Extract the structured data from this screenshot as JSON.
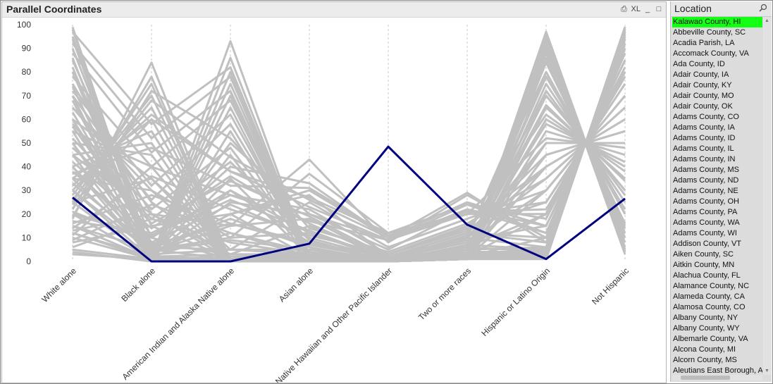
{
  "chart_panel": {
    "title": "Parallel Coordinates",
    "icons": [
      {
        "name": "print-icon",
        "glyph": "⎙"
      },
      {
        "name": "excel-icon",
        "glyph": "XL"
      },
      {
        "name": "minimize-icon",
        "glyph": "_"
      },
      {
        "name": "maximize-icon",
        "glyph": "□"
      }
    ]
  },
  "list_panel": {
    "title": "Location",
    "selected": "Kalawao County, HI",
    "items": [
      "Kalawao County, HI",
      "Abbeville County, SC",
      "Acadia Parish, LA",
      "Accomack County, VA",
      "Ada County, ID",
      "Adair County, IA",
      "Adair County, KY",
      "Adair County, MO",
      "Adair County, OK",
      "Adams County, CO",
      "Adams County, IA",
      "Adams County, ID",
      "Adams County, IL",
      "Adams County, IN",
      "Adams County, MS",
      "Adams County, ND",
      "Adams County, NE",
      "Adams County, OH",
      "Adams County, PA",
      "Adams County, WA",
      "Adams County, WI",
      "Addison County, VT",
      "Aiken County, SC",
      "Aitkin County, MN",
      "Alachua County, FL",
      "Alamance County, NC",
      "Alameda County, CA",
      "Alamosa County, CO",
      "Albany County, NY",
      "Albany County, WY",
      "Albemarle County, VA",
      "Alcona County, MI",
      "Alcorn County, MS",
      "Aleutians East Borough, AK"
    ]
  },
  "chart_data": {
    "type": "line",
    "title": "Parallel Coordinates",
    "categories": [
      "White alone",
      "Black alone",
      "American Indian and Alaska Native alone",
      "Asian alone",
      "Native Hawaiian and Other Pacific Islander",
      "Two or more races",
      "Hispanic or Latino Origin",
      "Not Hispanic"
    ],
    "ylim": [
      0,
      100
    ],
    "yticks": [
      0,
      10,
      20,
      30,
      40,
      50,
      60,
      70,
      80,
      90,
      100
    ],
    "grid": "vertical dashed at each axis",
    "highlight_color": "#000080",
    "background_color": "#c0c0c0",
    "series": [
      {
        "name": "Kalawao County, HI",
        "highlight": true,
        "values": [
          27,
          0,
          0,
          7.5,
          48.5,
          15.5,
          1,
          26.5
        ]
      },
      {
        "values": [
          99,
          0,
          0,
          1,
          0,
          1,
          1,
          99
        ]
      },
      {
        "values": [
          95,
          2,
          1,
          1,
          0,
          1,
          4,
          96
        ]
      },
      {
        "values": [
          90,
          5,
          1,
          2,
          0,
          2,
          6,
          94
        ]
      },
      {
        "values": [
          85,
          10,
          1,
          2,
          0,
          2,
          3,
          97
        ]
      },
      {
        "values": [
          80,
          15,
          1,
          2,
          0,
          2,
          10,
          90
        ]
      },
      {
        "values": [
          75,
          20,
          1,
          2,
          0,
          2,
          20,
          80
        ]
      },
      {
        "values": [
          70,
          25,
          1,
          2,
          0,
          2,
          30,
          70
        ]
      },
      {
        "values": [
          65,
          30,
          1,
          2,
          0,
          2,
          40,
          60
        ]
      },
      {
        "values": [
          60,
          35,
          1,
          2,
          0,
          2,
          50,
          50
        ]
      },
      {
        "values": [
          55,
          40,
          1,
          2,
          0,
          2,
          60,
          40
        ]
      },
      {
        "values": [
          50,
          45,
          1,
          2,
          0,
          2,
          70,
          30
        ]
      },
      {
        "values": [
          45,
          50,
          1,
          2,
          0,
          2,
          80,
          20
        ]
      },
      {
        "values": [
          40,
          55,
          1,
          2,
          0,
          2,
          90,
          10
        ]
      },
      {
        "values": [
          35,
          60,
          1,
          2,
          0,
          2,
          95,
          5
        ]
      },
      {
        "values": [
          30,
          65,
          1,
          2,
          0,
          2,
          85,
          15
        ]
      },
      {
        "values": [
          28,
          70,
          1,
          1,
          0,
          1,
          75,
          25
        ]
      },
      {
        "values": [
          25,
          75,
          0,
          1,
          0,
          1,
          65,
          35
        ]
      },
      {
        "values": [
          22,
          78,
          0,
          0,
          0,
          1,
          55,
          45
        ]
      },
      {
        "values": [
          18,
          84,
          0,
          0,
          0,
          1,
          45,
          55
        ]
      },
      {
        "values": [
          60,
          3,
          35,
          2,
          0,
          3,
          5,
          95
        ]
      },
      {
        "values": [
          50,
          2,
          45,
          1,
          0,
          3,
          3,
          97
        ]
      },
      {
        "values": [
          40,
          1,
          55,
          1,
          0,
          3,
          4,
          96
        ]
      },
      {
        "values": [
          30,
          1,
          65,
          1,
          0,
          3,
          3,
          97
        ]
      },
      {
        "values": [
          25,
          1,
          70,
          1,
          0,
          3,
          3,
          97
        ]
      },
      {
        "values": [
          20,
          1,
          75,
          1,
          0,
          3,
          3,
          97
        ]
      },
      {
        "values": [
          15,
          1,
          80,
          1,
          0,
          3,
          2,
          98
        ]
      },
      {
        "values": [
          12,
          1,
          86,
          1,
          0,
          2,
          2,
          98
        ]
      },
      {
        "values": [
          5,
          1,
          93,
          1,
          0,
          2,
          1,
          99
        ]
      },
      {
        "values": [
          70,
          3,
          20,
          2,
          0,
          5,
          6,
          94
        ]
      },
      {
        "values": [
          80,
          2,
          12,
          2,
          0,
          4,
          4,
          96
        ]
      },
      {
        "values": [
          55,
          2,
          30,
          8,
          2,
          12,
          10,
          90
        ]
      },
      {
        "values": [
          45,
          2,
          25,
          20,
          5,
          22,
          12,
          88
        ]
      },
      {
        "values": [
          35,
          3,
          20,
          30,
          10,
          25,
          15,
          85
        ]
      },
      {
        "values": [
          30,
          4,
          15,
          43,
          8,
          28,
          10,
          90
        ]
      },
      {
        "values": [
          40,
          5,
          10,
          37,
          12,
          20,
          20,
          80
        ]
      },
      {
        "values": [
          50,
          6,
          5,
          25,
          6,
          18,
          30,
          70
        ]
      },
      {
        "values": [
          60,
          8,
          3,
          15,
          3,
          15,
          40,
          60
        ]
      },
      {
        "values": [
          20,
          10,
          40,
          33,
          10,
          29,
          8,
          92
        ]
      },
      {
        "values": [
          15,
          5,
          50,
          20,
          9,
          24,
          12,
          88
        ]
      },
      {
        "values": [
          35,
          30,
          10,
          12,
          2,
          10,
          50,
          50
        ]
      },
      {
        "values": [
          25,
          35,
          5,
          5,
          1,
          6,
          72,
          28
        ]
      },
      {
        "values": [
          45,
          20,
          3,
          3,
          0,
          4,
          60,
          40
        ]
      },
      {
        "values": [
          12,
          2,
          1,
          1,
          0,
          1,
          88,
          12
        ]
      },
      {
        "values": [
          10,
          1,
          1,
          1,
          0,
          1,
          92,
          8
        ]
      },
      {
        "values": [
          3,
          1,
          0,
          0,
          0,
          1,
          97,
          4
        ]
      },
      {
        "values": [
          4,
          0,
          1,
          0,
          0,
          1,
          96,
          3
        ]
      },
      {
        "values": [
          8,
          15,
          20,
          28,
          2,
          12,
          45,
          55
        ]
      },
      {
        "values": [
          13,
          20,
          15,
          18,
          1,
          10,
          35,
          65
        ]
      },
      {
        "values": [
          17,
          12,
          28,
          22,
          3,
          14,
          25,
          75
        ]
      },
      {
        "values": [
          21,
          8,
          24,
          10,
          1,
          9,
          15,
          85
        ]
      },
      {
        "values": [
          33,
          6,
          18,
          6,
          0,
          6,
          20,
          80
        ]
      },
      {
        "values": [
          38,
          10,
          30,
          12,
          1,
          8,
          30,
          70
        ]
      },
      {
        "values": [
          42,
          14,
          36,
          16,
          1,
          10,
          40,
          60
        ]
      },
      {
        "values": [
          48,
          18,
          42,
          9,
          0,
          7,
          50,
          50
        ]
      },
      {
        "values": [
          58,
          22,
          48,
          4,
          0,
          5,
          58,
          42
        ]
      },
      {
        "values": [
          65,
          26,
          58,
          3,
          0,
          4,
          66,
          34
        ]
      },
      {
        "values": [
          72,
          32,
          62,
          2,
          0,
          3,
          70,
          30
        ]
      },
      {
        "values": [
          78,
          40,
          68,
          2,
          0,
          3,
          78,
          22
        ]
      },
      {
        "values": [
          88,
          46,
          72,
          1,
          0,
          2,
          84,
          16
        ]
      },
      {
        "values": [
          92,
          52,
          78,
          1,
          0,
          2,
          90,
          10
        ]
      },
      {
        "values": [
          97,
          58,
          82,
          1,
          0,
          1,
          94,
          6
        ]
      },
      {
        "values": [
          32,
          62,
          38,
          23,
          9,
          22,
          15,
          85
        ]
      },
      {
        "values": [
          26,
          68,
          44,
          26,
          10,
          20,
          25,
          75
        ]
      },
      {
        "values": [
          19,
          72,
          52,
          14,
          4,
          16,
          35,
          65
        ]
      },
      {
        "values": [
          24,
          60,
          38,
          27,
          12,
          24,
          18,
          82
        ]
      },
      {
        "values": [
          37,
          48,
          32,
          31,
          11,
          21,
          22,
          78
        ]
      },
      {
        "values": [
          11,
          40,
          28,
          17,
          9,
          20,
          52,
          48
        ]
      },
      {
        "values": [
          14,
          36,
          22,
          11,
          3,
          13,
          62,
          38
        ]
      },
      {
        "values": [
          16,
          28,
          16,
          7,
          1,
          11,
          70,
          30
        ]
      },
      {
        "values": [
          9,
          24,
          12,
          4,
          0,
          11,
          80,
          20
        ]
      },
      {
        "values": [
          6,
          18,
          8,
          3,
          0,
          10,
          86,
          14
        ]
      },
      {
        "values": [
          52,
          16,
          34,
          19,
          2,
          12,
          8,
          92
        ]
      },
      {
        "values": [
          57,
          11,
          26,
          13,
          1,
          10,
          6,
          94
        ]
      },
      {
        "values": [
          63,
          7,
          16,
          8,
          0,
          7,
          5,
          95
        ]
      },
      {
        "values": [
          68,
          4,
          9,
          5,
          0,
          6,
          4,
          96
        ]
      },
      {
        "values": [
          74,
          3,
          5,
          3,
          0,
          4,
          3,
          97
        ]
      },
      {
        "values": [
          82,
          2,
          3,
          2,
          0,
          3,
          2,
          98
        ]
      },
      {
        "values": [
          86,
          1,
          2,
          2,
          0,
          2,
          2,
          98
        ]
      },
      {
        "values": [
          94,
          1,
          1,
          1,
          0,
          2,
          1,
          99
        ]
      },
      {
        "values": [
          98,
          0,
          0,
          1,
          0,
          1,
          1,
          99
        ]
      }
    ]
  }
}
